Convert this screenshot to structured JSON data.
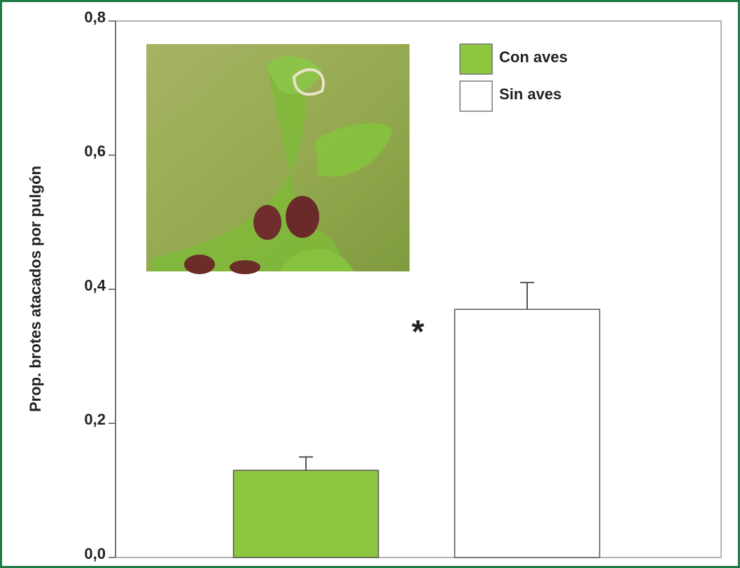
{
  "chart_data": {
    "type": "bar",
    "ylabel": "Prop. brotes atacados por pulgón",
    "categories": [
      null
    ],
    "series": [
      {
        "name": "Con aves",
        "color": "#8dc63f",
        "values": [
          0.13
        ],
        "errors": [
          0.02
        ]
      },
      {
        "name": "Sin aves",
        "color": "#ffffff",
        "values": [
          0.37
        ],
        "errors": [
          0.04
        ]
      }
    ],
    "annotations": [
      "*"
    ],
    "ylim": [
      0,
      0.8
    ],
    "yticks": [
      {
        "value": 0,
        "label": "0,0"
      },
      {
        "value": 0.2,
        "label": "0,2"
      },
      {
        "value": 0.4,
        "label": "0,4"
      },
      {
        "value": 0.6,
        "label": "0,6"
      },
      {
        "value": 0.8,
        "label": "0,8"
      }
    ],
    "legend": "upper-right"
  }
}
